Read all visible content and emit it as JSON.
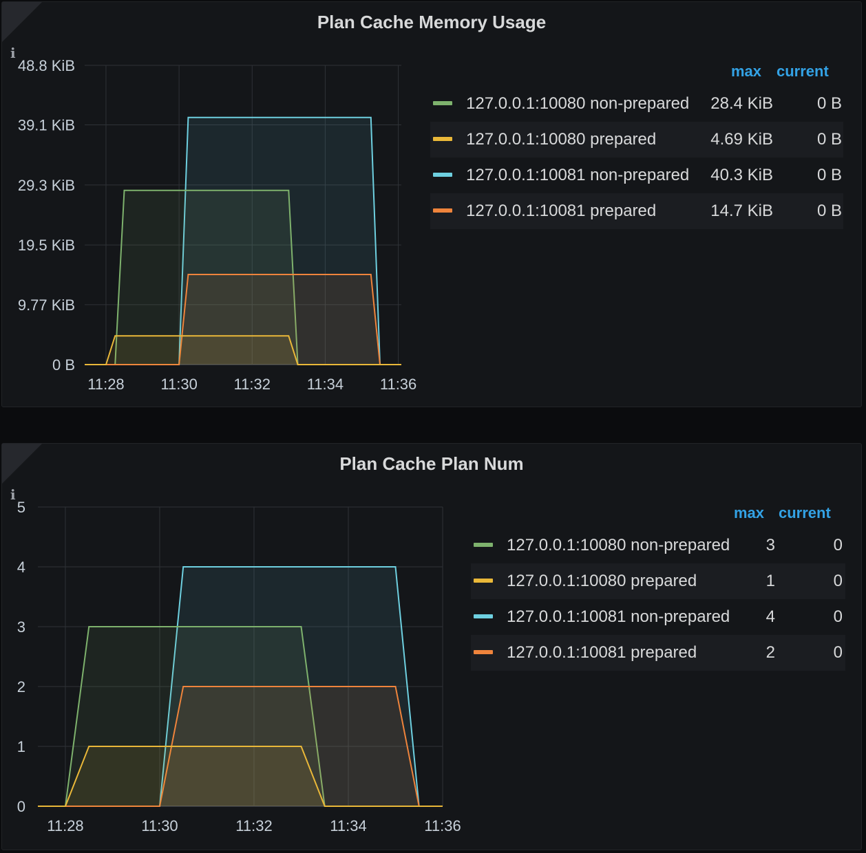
{
  "colors": {
    "green": "#7eb26d",
    "yellow": "#eab839",
    "cyan": "#6ed0e0",
    "orange": "#ef843c",
    "legend_header": "#33a2e5"
  },
  "info_icon": "info-icon",
  "chart_data": [
    {
      "type": "area",
      "title": "Plan Cache Memory Usage",
      "y_unit": "KiB",
      "ylim": [
        0,
        48.8
      ],
      "yticks": [
        0,
        9.77,
        19.5,
        29.3,
        39.1,
        48.8
      ],
      "ytick_labels": [
        "0 B",
        "9.77 KiB",
        "19.5 KiB",
        "29.3 KiB",
        "39.1 KiB",
        "48.8 KiB"
      ],
      "xlim": [
        "11:27:25",
        "11:36:05"
      ],
      "xticks": [
        "11:28",
        "11:30",
        "11:32",
        "11:34",
        "11:36"
      ],
      "grid": true,
      "legend_placement": "right",
      "legend_columns": [
        "max",
        "current"
      ],
      "series": [
        {
          "name": "127.0.0.1:10080 non-prepared",
          "color": "green",
          "max": "28.4 KiB",
          "current": "0 B",
          "x": [
            "11:27:25",
            "11:28:15",
            "11:28:30",
            "11:33:00",
            "11:33:15",
            "11:36:05"
          ],
          "y": [
            0,
            0,
            28.4,
            28.4,
            0,
            0
          ]
        },
        {
          "name": "127.0.0.1:10080 prepared",
          "color": "yellow",
          "max": "4.69 KiB",
          "current": "0 B",
          "x": [
            "11:27:25",
            "11:28:00",
            "11:28:15",
            "11:33:00",
            "11:33:15",
            "11:36:05"
          ],
          "y": [
            0,
            0,
            4.69,
            4.69,
            0,
            0
          ]
        },
        {
          "name": "127.0.0.1:10081 non-prepared",
          "color": "cyan",
          "max": "40.3 KiB",
          "current": "0 B",
          "x": [
            "11:27:25",
            "11:30:00",
            "11:30:15",
            "11:35:15",
            "11:35:30",
            "11:36:05"
          ],
          "y": [
            0,
            0,
            40.3,
            40.3,
            0,
            0
          ]
        },
        {
          "name": "127.0.0.1:10081 prepared",
          "color": "orange",
          "max": "14.7 KiB",
          "current": "0 B",
          "x": [
            "11:27:25",
            "11:30:00",
            "11:30:15",
            "11:35:15",
            "11:35:30",
            "11:36:05"
          ],
          "y": [
            0,
            0,
            14.7,
            14.7,
            0,
            0
          ]
        }
      ]
    },
    {
      "type": "area",
      "title": "Plan Cache Plan Num",
      "ylim": [
        0,
        5
      ],
      "yticks": [
        0,
        1,
        2,
        3,
        4,
        5
      ],
      "ytick_labels": [
        "0",
        "1",
        "2",
        "3",
        "4",
        "5"
      ],
      "xlim": [
        "11:27:25",
        "11:36:00"
      ],
      "xticks": [
        "11:28",
        "11:30",
        "11:32",
        "11:34",
        "11:36"
      ],
      "grid": true,
      "legend_placement": "right",
      "legend_columns": [
        "max",
        "current"
      ],
      "series": [
        {
          "name": "127.0.0.1:10080 non-prepared",
          "color": "green",
          "max": "3",
          "current": "0",
          "x": [
            "11:27:25",
            "11:28:00",
            "11:28:30",
            "11:33:00",
            "11:33:30",
            "11:36:00"
          ],
          "y": [
            0,
            0,
            3,
            3,
            0,
            0
          ]
        },
        {
          "name": "127.0.0.1:10080 prepared",
          "color": "yellow",
          "max": "1",
          "current": "0",
          "x": [
            "11:27:25",
            "11:28:00",
            "11:28:30",
            "11:33:00",
            "11:33:30",
            "11:36:00"
          ],
          "y": [
            0,
            0,
            1,
            1,
            0,
            0
          ]
        },
        {
          "name": "127.0.0.1:10081 non-prepared",
          "color": "cyan",
          "max": "4",
          "current": "0",
          "x": [
            "11:27:25",
            "11:30:00",
            "11:30:30",
            "11:35:00",
            "11:35:30",
            "11:36:00"
          ],
          "y": [
            0,
            0,
            4,
            4,
            0,
            0
          ]
        },
        {
          "name": "127.0.0.1:10081 prepared",
          "color": "orange",
          "max": "2",
          "current": "0",
          "x": [
            "11:27:25",
            "11:30:00",
            "11:30:30",
            "11:35:00",
            "11:35:30",
            "11:36:00"
          ],
          "y": [
            0,
            0,
            2,
            2,
            0,
            0
          ]
        }
      ]
    }
  ]
}
